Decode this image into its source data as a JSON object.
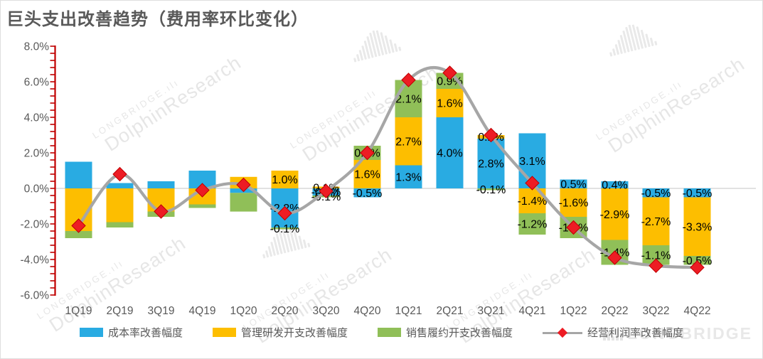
{
  "title": "巨头支出改善趋势（费用率环比变化）",
  "watermark": {
    "brand": "LONGBRIDGE",
    "research": "DolphinResearch",
    "logo_glyph": ".ılı",
    "logo_icon": "bars-fan"
  },
  "chart_data": {
    "type": "bar",
    "combo": "stacked-bar-with-line",
    "title": "巨头支出改善趋势（费用率环比变化）",
    "categories": [
      "1Q19",
      "2Q19",
      "3Q19",
      "4Q19",
      "1Q20",
      "2Q20",
      "3Q20",
      "4Q20",
      "1Q21",
      "2Q21",
      "3Q21",
      "4Q21",
      "1Q22",
      "2Q22",
      "3Q22",
      "4Q22"
    ],
    "series": [
      {
        "name": "成本率改善幅度",
        "color": "#29ABE2",
        "values": [
          1.5,
          0.3,
          0.4,
          1.0,
          -0.25,
          -2.2,
          -0.4,
          -0.5,
          1.3,
          4.0,
          2.8,
          3.1,
          0.5,
          0.4,
          -0.5,
          -0.5
        ],
        "labels": [
          null,
          null,
          null,
          null,
          null,
          "-2.2%",
          "-0.4%",
          "-0.5%",
          "1.3%",
          "4.0%",
          "2.8%",
          "3.1%",
          "0.5%",
          "0.4%",
          "-0.5%",
          "-0.5%"
        ]
      },
      {
        "name": "管理研发开支改善幅度",
        "color": "#FDBE00",
        "values": [
          -2.4,
          -1.9,
          -1.3,
          -0.9,
          0.65,
          1.0,
          0.1,
          1.6,
          2.7,
          1.6,
          0.2,
          -1.4,
          -1.6,
          -2.9,
          -2.7,
          -3.3
        ],
        "labels": [
          null,
          null,
          null,
          null,
          null,
          "1.0%",
          "0.1%",
          "1.6%",
          "2.7%",
          "1.6%",
          "0.2%",
          "-1.4%",
          "-1.6%",
          "-2.9%",
          "-2.7%",
          "-3.3%"
        ]
      },
      {
        "name": "销售履约开支改善幅度",
        "color": "#90BF58",
        "values": [
          -0.4,
          -0.3,
          -0.3,
          -0.2,
          -1.05,
          -0.1,
          -0.1,
          0.8,
          2.1,
          0.9,
          -0.1,
          -1.2,
          -1.2,
          -1.4,
          -1.1,
          -0.5
        ],
        "labels": [
          null,
          null,
          null,
          null,
          null,
          "-0.1%",
          "-0.1%",
          "0.8%",
          "2.1%",
          "0.9%",
          "-0.1%",
          "-1.2%",
          "-1.2%",
          "-1.4%",
          "-1.1%",
          "-0.5%"
        ]
      }
    ],
    "line_series": {
      "name": "经营利润率改善幅度",
      "line_color": "#A6A6A6",
      "marker_color": "#ED1C24",
      "marker_edge": "#C00000",
      "values": [
        -2.1,
        0.8,
        -1.3,
        -0.1,
        0.2,
        -1.4,
        -0.15,
        2.0,
        6.1,
        6.5,
        3.0,
        0.3,
        -2.2,
        -3.9,
        -4.35,
        -4.45
      ]
    },
    "ylim": [
      -6,
      8
    ],
    "ytick_step": 2,
    "ytick_labels": [
      "8.0%",
      "6.0%",
      "4.0%",
      "2.0%",
      "0.0%",
      "-2.0%",
      "-4.0%",
      "-6.0%"
    ],
    "axis_color": "#C00000",
    "gridline_color": "#D9D9D9",
    "label_color": "#000000",
    "tick_label_color": "#595959",
    "grid": "zero-line-only",
    "legend_position": "bottom"
  }
}
